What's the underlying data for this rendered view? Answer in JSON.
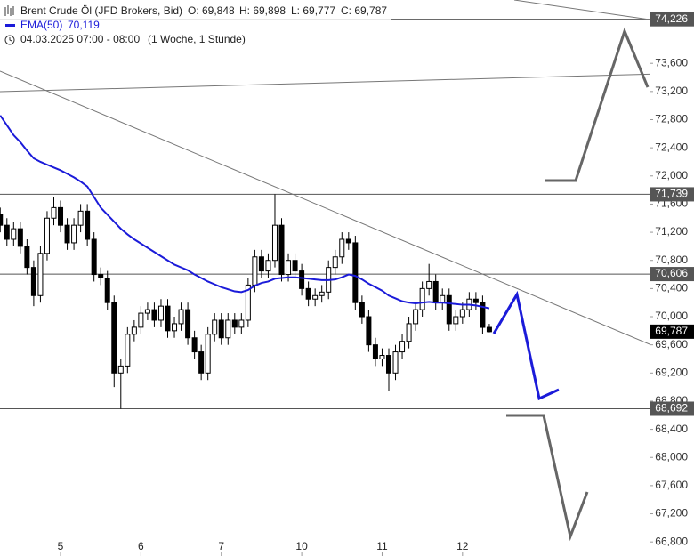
{
  "chart_data": {
    "type": "candlestick",
    "title": "Brent Crude Öl (JFD Brokers, Bid)",
    "quote": [
      "O: 69,848",
      "H: 69,898",
      "L: 69,777",
      "C: 69,787"
    ],
    "period": "04.03.2025 07:00 - 08:00",
    "interval": "(1 Woche, 1 Stunde)",
    "categories": [
      null,
      null,
      null,
      null,
      null,
      null,
      null,
      null,
      null,
      "5",
      null,
      null,
      null,
      null,
      null,
      null,
      null,
      null,
      null,
      null,
      null,
      "6",
      null,
      null,
      null,
      null,
      null,
      null,
      null,
      null,
      null,
      null,
      null,
      "7",
      null,
      null,
      null,
      null,
      null,
      null,
      null,
      null,
      null,
      null,
      null,
      "10",
      null,
      null,
      null,
      null,
      null,
      null,
      null,
      null,
      null,
      null,
      null,
      "11",
      null,
      null,
      null,
      null,
      null,
      null,
      null,
      null,
      null,
      null,
      null,
      "12",
      null,
      null,
      null,
      null
    ],
    "open": [
      71.45,
      71.3,
      71.1,
      71.25,
      71.0,
      70.7,
      70.3,
      70.9,
      71.4,
      71.55,
      71.3,
      71.05,
      71.3,
      71.5,
      71.1,
      70.6,
      70.55,
      70.2,
      69.2,
      69.3,
      69.75,
      69.85,
      70.05,
      70.1,
      69.95,
      70.15,
      69.8,
      69.9,
      70.1,
      69.7,
      69.5,
      69.2,
      69.75,
      69.95,
      69.7,
      69.95,
      69.85,
      69.95,
      70.45,
      70.85,
      70.65,
      70.8,
      71.3,
      70.6,
      70.8,
      70.65,
      70.4,
      70.25,
      70.3,
      70.35,
      70.7,
      70.85,
      71.1,
      71.05,
      70.2,
      70.0,
      69.6,
      69.4,
      69.45,
      69.2,
      69.5,
      69.65,
      69.9,
      70.1,
      70.4,
      70.5,
      70.2,
      70.3,
      69.9,
      70.0,
      70.1,
      70.25,
      70.2,
      69.848
    ],
    "high": [
      71.55,
      71.4,
      71.35,
      71.35,
      71.1,
      70.8,
      71.0,
      71.5,
      71.7,
      71.65,
      71.4,
      71.4,
      71.6,
      71.6,
      71.2,
      70.7,
      70.65,
      70.3,
      69.4,
      69.85,
      69.95,
      70.15,
      70.2,
      70.2,
      70.25,
      70.25,
      70.0,
      70.2,
      70.2,
      69.8,
      69.6,
      69.85,
      70.05,
      70.05,
      70.05,
      70.05,
      70.05,
      70.55,
      70.95,
      70.95,
      70.9,
      71.74,
      71.4,
      70.9,
      70.9,
      70.75,
      70.5,
      70.4,
      70.45,
      70.8,
      70.95,
      71.2,
      71.2,
      71.15,
      70.3,
      70.1,
      69.7,
      69.55,
      69.55,
      69.6,
      69.75,
      70.0,
      70.2,
      70.5,
      70.75,
      70.6,
      70.4,
      70.4,
      70.1,
      70.2,
      70.35,
      70.35,
      70.3,
      69.898
    ],
    "low": [
      71.2,
      71.0,
      71.0,
      70.9,
      70.6,
      70.15,
      70.2,
      70.8,
      71.3,
      71.2,
      70.95,
      70.95,
      71.2,
      71.0,
      70.5,
      70.45,
      70.1,
      69.0,
      68.69,
      69.2,
      69.65,
      69.75,
      69.95,
      69.85,
      69.85,
      69.7,
      69.7,
      69.8,
      69.6,
      69.4,
      69.1,
      69.1,
      69.65,
      69.6,
      69.6,
      69.75,
      69.75,
      69.85,
      70.35,
      70.55,
      70.55,
      70.7,
      70.5,
      70.5,
      70.55,
      70.3,
      70.15,
      70.15,
      70.2,
      70.25,
      70.6,
      70.75,
      70.95,
      70.1,
      69.9,
      69.5,
      69.3,
      69.3,
      68.95,
      69.1,
      69.4,
      69.55,
      69.8,
      70.0,
      70.3,
      70.1,
      70.1,
      69.8,
      69.8,
      69.9,
      70.0,
      70.1,
      69.75,
      69.777
    ],
    "close": [
      71.3,
      71.1,
      71.25,
      71.0,
      70.7,
      70.3,
      70.9,
      71.4,
      71.55,
      71.3,
      71.05,
      71.3,
      71.5,
      71.1,
      70.6,
      70.55,
      70.2,
      69.2,
      69.3,
      69.75,
      69.85,
      70.05,
      70.1,
      69.95,
      70.15,
      69.8,
      69.9,
      70.1,
      69.7,
      69.5,
      69.2,
      69.75,
      69.95,
      69.7,
      69.95,
      69.85,
      69.95,
      70.45,
      70.85,
      70.65,
      70.8,
      71.3,
      70.6,
      70.8,
      70.65,
      70.4,
      70.25,
      70.3,
      70.35,
      70.7,
      70.85,
      71.1,
      71.05,
      70.2,
      70.0,
      69.6,
      69.4,
      69.45,
      69.2,
      69.5,
      69.65,
      69.9,
      70.1,
      70.4,
      70.5,
      70.2,
      70.3,
      69.9,
      70.0,
      70.1,
      70.25,
      70.2,
      69.848,
      69.787
    ],
    "up_color": "#ffffff",
    "down_color": "#000000",
    "series": [
      {
        "name": "EMA(50)",
        "value_label": "70,119",
        "color": "#1b1bd9",
        "values": [
          72.86,
          72.72,
          72.58,
          72.48,
          72.36,
          72.25,
          72.2,
          72.16,
          72.12,
          72.08,
          72.03,
          71.98,
          71.92,
          71.85,
          71.7,
          71.55,
          71.45,
          71.35,
          71.25,
          71.17,
          71.1,
          71.04,
          70.98,
          70.92,
          70.86,
          70.8,
          70.74,
          70.7,
          70.66,
          70.6,
          70.55,
          70.5,
          70.46,
          70.42,
          70.39,
          70.36,
          70.35,
          70.38,
          70.44,
          70.48,
          70.5,
          70.54,
          70.55,
          70.56,
          70.56,
          70.55,
          70.54,
          70.53,
          70.52,
          70.52,
          70.53,
          70.56,
          70.6,
          70.58,
          70.53,
          70.47,
          70.42,
          70.37,
          70.3,
          70.26,
          70.22,
          70.2,
          70.19,
          70.2,
          70.21,
          70.2,
          70.2,
          70.19,
          70.18,
          70.17,
          70.17,
          70.16,
          70.14,
          70.119
        ]
      }
    ],
    "levels": [
      {
        "value": 74.226,
        "label": "74,226"
      },
      {
        "value": 71.739,
        "label": "71,739"
      },
      {
        "value": 70.606,
        "label": "70,606"
      },
      {
        "value": 68.692,
        "label": "68,692"
      }
    ],
    "level_color": "#555555",
    "last_price": {
      "value": 69.787,
      "label": "69,787"
    },
    "ylim": [
      66.6,
      74.5
    ],
    "yticks": [
      {
        "value": 66.8,
        "label": "66,800"
      },
      {
        "value": 67.2,
        "label": "67,200"
      },
      {
        "value": 67.6,
        "label": "67,600"
      },
      {
        "value": 68,
        "label": "68,000"
      },
      {
        "value": 68.4,
        "label": "68,400"
      },
      {
        "value": 68.8,
        "label": "68,800"
      },
      {
        "value": 69.2,
        "label": "69,200"
      },
      {
        "value": 69.6,
        "label": "69,600"
      },
      {
        "value": 70,
        "label": "70,000"
      },
      {
        "value": 70.4,
        "label": "70,400"
      },
      {
        "value": 70.8,
        "label": "70,800"
      },
      {
        "value": 71.2,
        "label": "71,200"
      },
      {
        "value": 71.6,
        "label": "71,600"
      },
      {
        "value": 72,
        "label": "72,000"
      },
      {
        "value": 72.4,
        "label": "72,400"
      },
      {
        "value": 72.8,
        "label": "72,800"
      },
      {
        "value": 73.2,
        "label": "73,200"
      },
      {
        "value": 73.6,
        "label": "73,600"
      }
    ]
  }
}
